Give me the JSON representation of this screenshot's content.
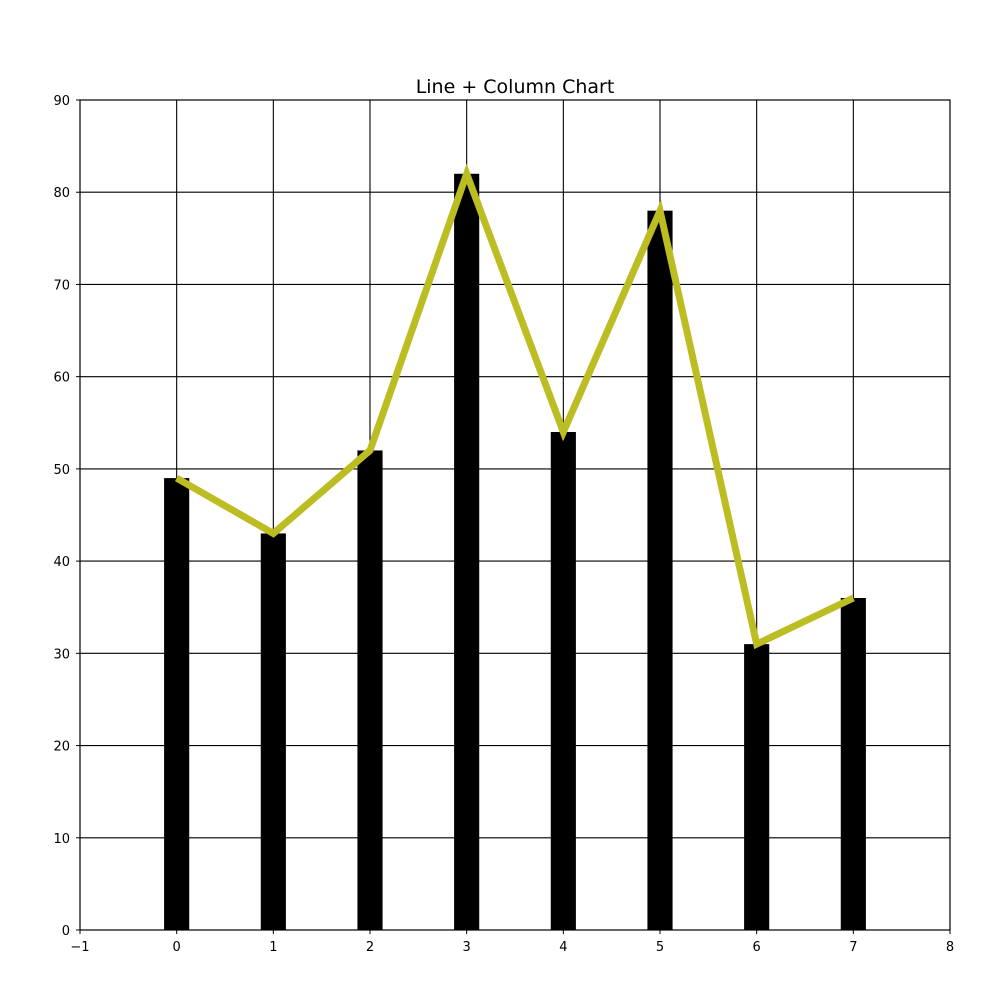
{
  "chart_data": {
    "type": "bar",
    "title": "Line + Column Chart",
    "xlabel": "",
    "ylabel": "",
    "x": [
      0,
      1,
      2,
      3,
      4,
      5,
      6,
      7
    ],
    "series": [
      {
        "type": "bar",
        "values": [
          49,
          43,
          52,
          82,
          54,
          78,
          31,
          36
        ],
        "color": "#000000"
      },
      {
        "type": "line",
        "values": [
          49,
          43,
          52,
          82,
          54,
          78,
          31,
          36
        ],
        "color": "#bcbd22"
      }
    ],
    "xlim": [
      -1,
      8
    ],
    "ylim": [
      0,
      90
    ],
    "xticks": [
      "−1",
      "0",
      "1",
      "2",
      "3",
      "4",
      "5",
      "6",
      "7",
      "8"
    ],
    "yticks": [
      "0",
      "10",
      "20",
      "30",
      "40",
      "50",
      "60",
      "70",
      "80",
      "90"
    ],
    "grid": true,
    "legend": "none"
  }
}
